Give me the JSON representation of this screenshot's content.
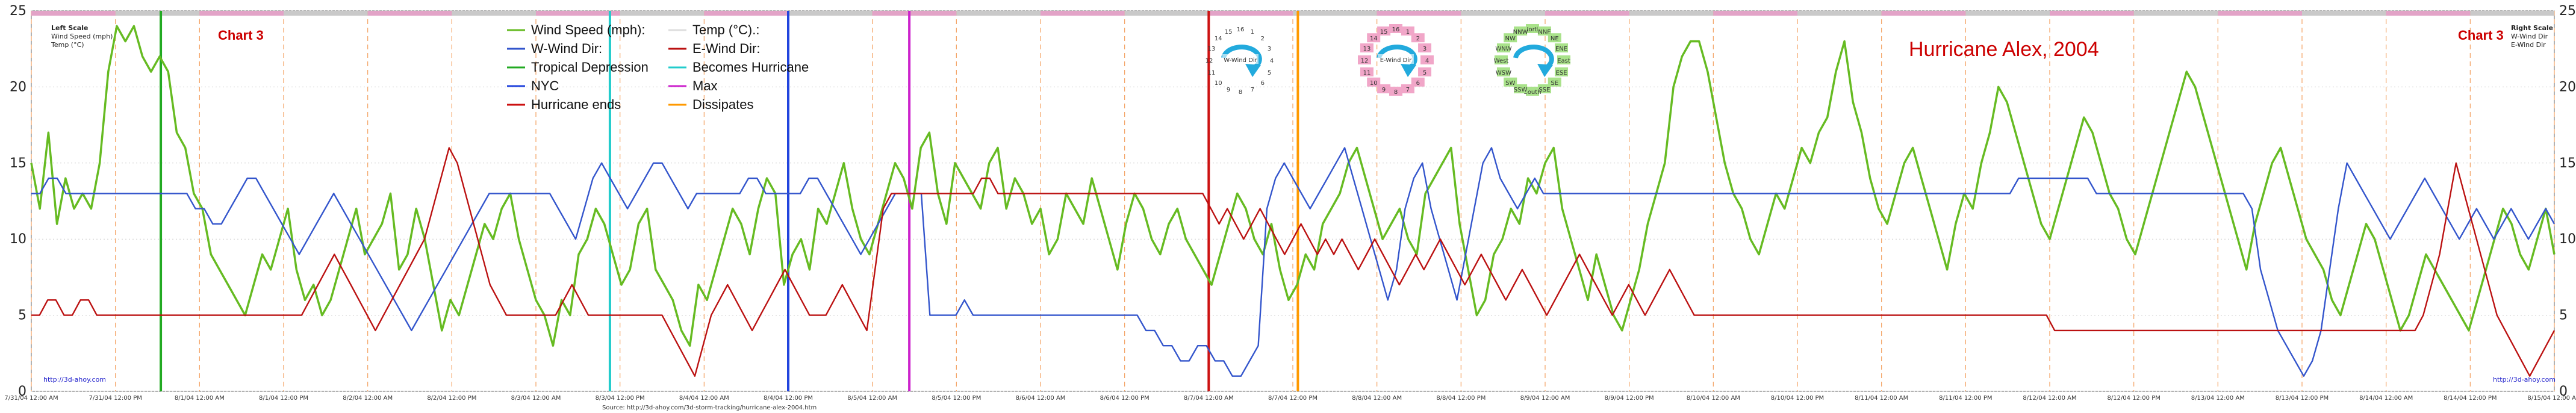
{
  "chart_data": {
    "type": "line",
    "title": "Hurricane Alex, 2004",
    "chart_label_left": "Chart 3",
    "chart_label_right": "Chart 3",
    "left_scale": {
      "title": "Left Scale",
      "lines": [
        "Wind Speed (mph)",
        "Temp (°C)"
      ]
    },
    "right_scale": {
      "title": "Right Scale",
      "lines": [
        "W-Wind Dir",
        "E-Wind Dir"
      ]
    },
    "ylim": [
      0,
      25
    ],
    "yticks": [
      0,
      5,
      10,
      15,
      20,
      25
    ],
    "x_labels": [
      "7/31/04 12:00 AM",
      "7/31/04 12:00 PM",
      "8/1/04 12:00 AM",
      "8/1/04 12:00 PM",
      "8/2/04 12:00 AM",
      "8/2/04 12:00 PM",
      "8/3/04 12:00 AM",
      "8/3/04 12:00 PM",
      "8/4/04 12:00 AM",
      "8/4/04 12:00 PM",
      "8/5/04 12:00 AM",
      "8/5/04 12:00 PM",
      "8/6/04 12:00 AM",
      "8/6/04 12:00 PM",
      "8/7/04 12:00 AM",
      "8/7/04 12:00 PM",
      "8/8/04 12:00 AM",
      "8/8/04 12:00 PM",
      "8/9/04 12:00 AM",
      "8/9/04 12:00 PM",
      "8/10/04 12:00 AM",
      "8/10/04 12:00 PM",
      "8/11/04 12:00 AM",
      "8/11/04 12:00 PM",
      "8/12/04 12:00 AM",
      "8/12/04 12:00 PM",
      "8/13/04 12:00 AM",
      "8/13/04 12:00 PM",
      "8/14/04 12:00 AM",
      "8/14/04 12:00 PM",
      "8/15/04 12:00 AM"
    ],
    "legend": [
      {
        "label": "Wind Speed (mph):",
        "color": "#66bb22"
      },
      {
        "label": "Temp (°C).:",
        "color": "#dddddd"
      },
      {
        "label": "W-Wind Dir:",
        "color": "#3355cc"
      },
      {
        "label": "E-Wind Dir:",
        "color": "#bb1111"
      },
      {
        "label": "Tropical Depression",
        "color": "#22aa22"
      },
      {
        "label": "Becomes Hurricane",
        "color": "#22cccc"
      },
      {
        "label": "NYC",
        "color": "#2244dd"
      },
      {
        "label": "Max",
        "color": "#cc22cc"
      },
      {
        "label": "Hurricane ends",
        "color": "#cc1111"
      },
      {
        "label": "Dissipates",
        "color": "#ff9900"
      }
    ],
    "event_markers": [
      {
        "name": "Tropical Depression",
        "x": 1.54,
        "color": "#22aa22"
      },
      {
        "name": "Becomes Hurricane",
        "x": 6.88,
        "color": "#22cccc"
      },
      {
        "name": "NYC",
        "x": 9.0,
        "color": "#2244dd"
      },
      {
        "name": "Max",
        "x": 10.44,
        "color": "#cc22cc"
      },
      {
        "name": "Hurricane ends",
        "x": 14.0,
        "color": "#cc1111"
      },
      {
        "name": "Dissipates",
        "x": 15.06,
        "color": "#ff9900"
      }
    ],
    "series": [
      {
        "name": "Wind Speed (mph)",
        "color": "#66bb22",
        "values": [
          15,
          12,
          17,
          11,
          14,
          12,
          13,
          12,
          15,
          21,
          24,
          23,
          24,
          22,
          21,
          22,
          21,
          17,
          16,
          13,
          12,
          9,
          8,
          7,
          6,
          5,
          7,
          9,
          8,
          10,
          12,
          8,
          6,
          7,
          5,
          6,
          8,
          10,
          12,
          9,
          10,
          11,
          13,
          8,
          9,
          12,
          10,
          7,
          4,
          6,
          5,
          7,
          9,
          11,
          10,
          12,
          13,
          10,
          8,
          6,
          5,
          3,
          6,
          5,
          9,
          10,
          12,
          11,
          9,
          7,
          8,
          11,
          12,
          8,
          7,
          6,
          4,
          3,
          7,
          6,
          8,
          10,
          12,
          11,
          9,
          12,
          14,
          13,
          7,
          9,
          10,
          8,
          12,
          11,
          13,
          15,
          12,
          10,
          9,
          11,
          13,
          15,
          14,
          12,
          16,
          17,
          13,
          11,
          15,
          14,
          13,
          12,
          15,
          16,
          12,
          14,
          13,
          11,
          12,
          9,
          10,
          13,
          12,
          11,
          14,
          12,
          10,
          8,
          11,
          13,
          12,
          10,
          9,
          11,
          12,
          10,
          9,
          8,
          7,
          9,
          11,
          13,
          12,
          10,
          9,
          11,
          8,
          6,
          7,
          9,
          8,
          11,
          12,
          13,
          15,
          16,
          14,
          12,
          10,
          11,
          12,
          10,
          9,
          13,
          14,
          15,
          16,
          11,
          8,
          5,
          6,
          9,
          10,
          12,
          11,
          14,
          13,
          15,
          16,
          12,
          10,
          8,
          6,
          9,
          7,
          5,
          4,
          6,
          8,
          11,
          13,
          15,
          20,
          22,
          23,
          23,
          21,
          18,
          15,
          13,
          12,
          10,
          9,
          11,
          13,
          12,
          14,
          16,
          15,
          17,
          18,
          21,
          23,
          19,
          17,
          14,
          12,
          11,
          13,
          15,
          16,
          14,
          12,
          10,
          8,
          11,
          13,
          12,
          15,
          17,
          20,
          19,
          17,
          15,
          13,
          11,
          10,
          12,
          14,
          16,
          18,
          17,
          15,
          13,
          12,
          10,
          9,
          11,
          13,
          15,
          17,
          19,
          21,
          20,
          18,
          16,
          14,
          12,
          10,
          8,
          11,
          13,
          15,
          16,
          14,
          12,
          10,
          9,
          8,
          6,
          5,
          7,
          9,
          11,
          10,
          8,
          6,
          4,
          5,
          7,
          9,
          8,
          7,
          6,
          5,
          4,
          6,
          8,
          10,
          12,
          11,
          9,
          8,
          10,
          12,
          9
        ]
      },
      {
        "name": "W-Wind Dir",
        "color": "#3355cc",
        "values": [
          13,
          13,
          14,
          14,
          13,
          13,
          13,
          13,
          13,
          13,
          13,
          13,
          13,
          13,
          13,
          13,
          13,
          13,
          13,
          12,
          12,
          11,
          11,
          12,
          13,
          14,
          14,
          13,
          12,
          11,
          10,
          9,
          10,
          11,
          12,
          13,
          12,
          11,
          10,
          9,
          8,
          7,
          6,
          5,
          4,
          5,
          6,
          7,
          8,
          9,
          10,
          11,
          12,
          13,
          13,
          13,
          13,
          13,
          13,
          13,
          13,
          12,
          11,
          10,
          12,
          14,
          15,
          14,
          13,
          12,
          13,
          14,
          15,
          15,
          14,
          13,
          12,
          13,
          13,
          13,
          13,
          13,
          13,
          14,
          14,
          13,
          13,
          13,
          13,
          13,
          14,
          14,
          13,
          12,
          11,
          10,
          9,
          10,
          11,
          12,
          13,
          13,
          13,
          13,
          5,
          5,
          5,
          5,
          6,
          5,
          5,
          5,
          5,
          5,
          5,
          5,
          5,
          5,
          5,
          5,
          5,
          5,
          5,
          5,
          5,
          5,
          5,
          5,
          5,
          4,
          4,
          3,
          3,
          2,
          2,
          3,
          3,
          2,
          2,
          1,
          1,
          2,
          3,
          12,
          14,
          15,
          14,
          13,
          12,
          13,
          14,
          15,
          16,
          14,
          12,
          10,
          8,
          6,
          8,
          12,
          14,
          15,
          12,
          10,
          8,
          6,
          9,
          12,
          15,
          16,
          14,
          13,
          12,
          13,
          14,
          13,
          13,
          13,
          13,
          13,
          13,
          13,
          13,
          13,
          13,
          13,
          13,
          13,
          13,
          13,
          13,
          13,
          13,
          13,
          13,
          13,
          13,
          13,
          13,
          13,
          13,
          13,
          13,
          13,
          13,
          13,
          13,
          13,
          13,
          13,
          13,
          13,
          13,
          13,
          13,
          13,
          13,
          13,
          13,
          13,
          13,
          13,
          13,
          13,
          13,
          13,
          13,
          13,
          13,
          13,
          14,
          14,
          14,
          14,
          14,
          14,
          14,
          14,
          14,
          13,
          13,
          13,
          13,
          13,
          13,
          13,
          13,
          13,
          13,
          13,
          13,
          13,
          13,
          13,
          13,
          13,
          13,
          12,
          8,
          6,
          4,
          3,
          2,
          1,
          2,
          4,
          8,
          12,
          15,
          14,
          13,
          12,
          11,
          10,
          11,
          12,
          13,
          14,
          13,
          12,
          11,
          10,
          11,
          12,
          11,
          10,
          11,
          12,
          11,
          10,
          11,
          12,
          11
        ]
      },
      {
        "name": "E-Wind Dir",
        "color": "#bb1111",
        "values": [
          5,
          5,
          6,
          6,
          5,
          5,
          6,
          6,
          5,
          5,
          5,
          5,
          5,
          5,
          5,
          5,
          5,
          5,
          5,
          5,
          5,
          5,
          5,
          5,
          5,
          5,
          5,
          5,
          5,
          5,
          5,
          5,
          5,
          5,
          6,
          7,
          8,
          9,
          8,
          7,
          6,
          5,
          4,
          5,
          6,
          7,
          8,
          9,
          10,
          12,
          14,
          16,
          15,
          13,
          11,
          9,
          7,
          6,
          5,
          5,
          5,
          5,
          5,
          5,
          5,
          6,
          7,
          6,
          5,
          5,
          5,
          5,
          5,
          5,
          5,
          5,
          5,
          5,
          4,
          3,
          2,
          1,
          3,
          5,
          6,
          7,
          6,
          5,
          4,
          5,
          6,
          7,
          8,
          7,
          6,
          5,
          5,
          5,
          6,
          7,
          6,
          5,
          4,
          8,
          12,
          13,
          13,
          13,
          13,
          13,
          13,
          13,
          13,
          13,
          13,
          13,
          14,
          14,
          13,
          13,
          13,
          13,
          13,
          13,
          13,
          13,
          13,
          13,
          13,
          13,
          13,
          13,
          13,
          13,
          13,
          13,
          13,
          13,
          13,
          13,
          13,
          13,
          13,
          13,
          12,
          11,
          12,
          11,
          10,
          11,
          12,
          11,
          10,
          9,
          10,
          11,
          10,
          9,
          10,
          9,
          10,
          9,
          8,
          9,
          10,
          9,
          8,
          7,
          8,
          9,
          8,
          9,
          10,
          9,
          8,
          7,
          8,
          9,
          8,
          7,
          6,
          7,
          8,
          7,
          6,
          5,
          6,
          7,
          8,
          9,
          8,
          7,
          6,
          5,
          6,
          7,
          6,
          5,
          6,
          7,
          8,
          7,
          6,
          5,
          5,
          5,
          5,
          5,
          5,
          5,
          5,
          5,
          5,
          5,
          5,
          5,
          5,
          5,
          5,
          5,
          5,
          5,
          5,
          5,
          5,
          5,
          5,
          5,
          5,
          5,
          5,
          5,
          5,
          5,
          5,
          5,
          5,
          5,
          5,
          5,
          5,
          5,
          5,
          5,
          5,
          5,
          5,
          4,
          4,
          4,
          4,
          4,
          4,
          4,
          4,
          4,
          4,
          4,
          4,
          4,
          4,
          4,
          4,
          4,
          4,
          4,
          4,
          4,
          4,
          4,
          4,
          4,
          4,
          4,
          4,
          4,
          4,
          4,
          4,
          4,
          4,
          4,
          4,
          4,
          4,
          4,
          4,
          4,
          4,
          4,
          4,
          4,
          5,
          7,
          9,
          12,
          15,
          13,
          11,
          9,
          7,
          5,
          4,
          3,
          2,
          1,
          2,
          3,
          4
        ]
      }
    ],
    "url_left": "http://3d-ahoy.com",
    "url_right": "http://3d-ahoy.com",
    "footer_url": "Source: http://3d-ahoy.com/3d-storm-tracking/hurricane-alex-2004.htm"
  },
  "compass": {
    "west_title": "W-Wind Dir",
    "east_title": "E-Wind Dir",
    "directions": [
      {
        "label": "North"
      },
      {
        "label": "NNE"
      },
      {
        "label": "NE"
      },
      {
        "label": "ENE"
      },
      {
        "label": "East"
      },
      {
        "label": "ESE"
      },
      {
        "label": "SE"
      },
      {
        "label": "SSE"
      },
      {
        "label": "South"
      },
      {
        "label": "SSW"
      },
      {
        "label": "SW"
      },
      {
        "label": "WSW"
      },
      {
        "label": "West"
      },
      {
        "label": "WNW"
      },
      {
        "label": "NW"
      },
      {
        "label": "NNW"
      }
    ]
  }
}
